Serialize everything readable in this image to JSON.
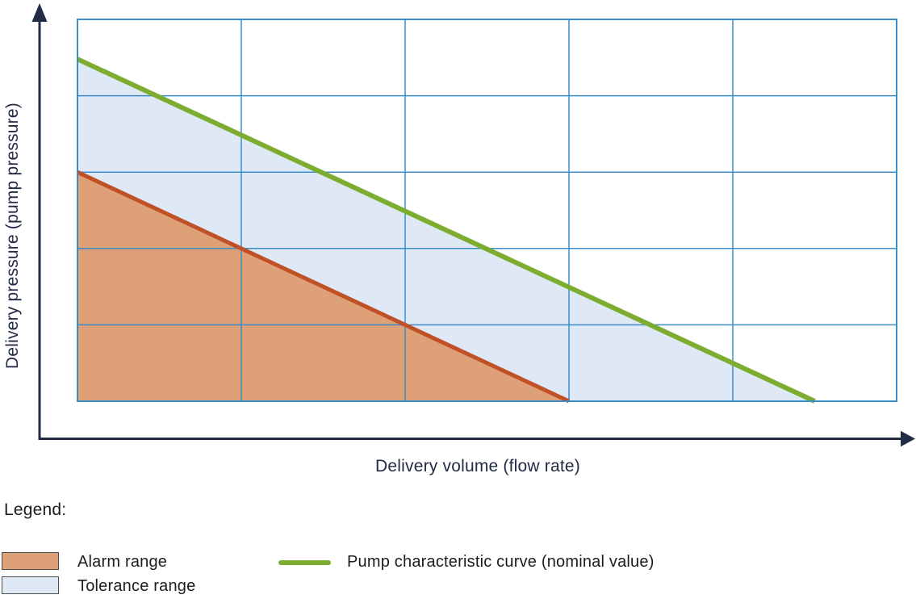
{
  "chart_data": {
    "type": "area",
    "title": "",
    "xlabel": "Delivery volume (flow rate)",
    "ylabel": "Delivery pressure (pump pressure)",
    "x_range": [
      0,
      5
    ],
    "y_range": [
      0,
      5
    ],
    "axis_tick_labels": "none (qualitative schematic; gridline spacing = 1 unit)",
    "grid": true,
    "grid_cols": 5,
    "grid_rows": 5,
    "series": [
      {
        "name": "Pump characteristic curve (nominal value)",
        "type": "line",
        "color": "#7dad30",
        "stroke_width": 6,
        "points": [
          [
            0,
            4.48
          ],
          [
            4.5,
            0
          ]
        ]
      },
      {
        "name": "Alarm range boundary",
        "type": "line",
        "color": "#c05026",
        "stroke_width": 5,
        "points": [
          [
            0,
            3
          ],
          [
            3,
            0
          ]
        ]
      }
    ],
    "areas": [
      {
        "name": "Tolerance range",
        "color": "#dfe8f5",
        "polygon": [
          [
            0,
            4.48
          ],
          [
            4.5,
            0
          ],
          [
            0,
            0
          ]
        ]
      },
      {
        "name": "Alarm range",
        "color": "#dda077",
        "polygon": [
          [
            0,
            3
          ],
          [
            3,
            0
          ],
          [
            0,
            0
          ]
        ]
      }
    ],
    "legend_position": "below-left"
  },
  "colors": {
    "axis": "#232c45",
    "grid": "#3b8dc9",
    "curve_green": "#7dad30",
    "alarm_red": "#c05026",
    "alarm_fill": "#dda077",
    "tolerance_fill": "#dfe8f5",
    "label_navy": "#222b44",
    "text_dark": "#1d1d1b"
  },
  "legend": {
    "title": "Legend:",
    "items": [
      {
        "label": "Alarm range",
        "swatch_type": "area",
        "color": "#dda077",
        "border": "#4d4d4d"
      },
      {
        "label": "Tolerance range",
        "swatch_type": "area",
        "color": "#dfe8f5",
        "border": "#4d4d4d"
      },
      {
        "label": "Pump characteristic curve (nominal value)",
        "swatch_type": "line",
        "color": "#7dad30"
      }
    ]
  }
}
